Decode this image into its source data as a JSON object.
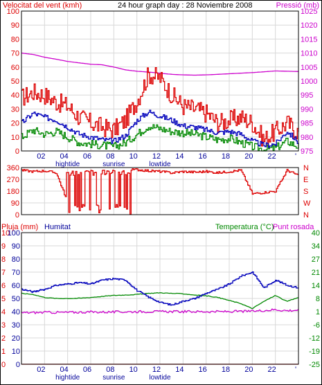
{
  "header": {
    "left_label": "Velocitat del vent (kmh)",
    "title": "24 hour graph day : 28 Noviembre 2008",
    "right_label": "Pressió (mb)"
  },
  "colors": {
    "frame": "#000000",
    "grid": "#d8d8d8",
    "red": "#dd0000",
    "green": "#008800",
    "blue": "#0000bb",
    "magenta": "#cc00cc",
    "label_blue": "#000099"
  },
  "chart_data": [
    {
      "id": "wind",
      "type": "line",
      "title": "24 hour graph day : 28 Noviembre 2008",
      "y_left": {
        "label": "Velocitat del vent (kmh)",
        "ticks": [
          0,
          10,
          20,
          30,
          40,
          50,
          60,
          70,
          80,
          90,
          100
        ],
        "range": [
          0,
          100
        ]
      },
      "y_right": {
        "label": "Pressió (mb)",
        "ticks": [
          975,
          980,
          985,
          990,
          995,
          1000,
          1005,
          1010,
          1015,
          1020,
          1025
        ],
        "range": [
          975,
          1025
        ]
      },
      "x_ticks": [
        "02",
        "04",
        "06",
        "08",
        "10",
        "12",
        "14",
        "16",
        "18",
        "20",
        "22"
      ],
      "x_annotations": [
        {
          "label": "hightide",
          "at": "04"
        },
        {
          "label": "sunrise",
          "at": "08"
        },
        {
          "label": "lowtide",
          "at": "12"
        }
      ],
      "x_hours": [
        0,
        1,
        2,
        3,
        4,
        5,
        6,
        7,
        8,
        9,
        10,
        11,
        12,
        13,
        14,
        15,
        16,
        17,
        18,
        19,
        20,
        21,
        22,
        23,
        24
      ],
      "series": [
        {
          "name": "gust",
          "axis": "left",
          "color": "#dd0000",
          "values": [
            38,
            42,
            40,
            35,
            32,
            24,
            20,
            17,
            15,
            22,
            36,
            55,
            52,
            40,
            32,
            30,
            27,
            20,
            22,
            24,
            20,
            8,
            14,
            20,
            13
          ]
        },
        {
          "name": "average",
          "axis": "left",
          "color": "#0000bb",
          "values": [
            20,
            27,
            24,
            22,
            17,
            12,
            10,
            8,
            7,
            11,
            22,
            28,
            25,
            22,
            18,
            17,
            15,
            13,
            14,
            12,
            7,
            4,
            5,
            14,
            6
          ]
        },
        {
          "name": "minimum",
          "axis": "left",
          "color": "#008800",
          "values": [
            10,
            15,
            12,
            14,
            10,
            6,
            5,
            4,
            3,
            6,
            12,
            18,
            16,
            14,
            13,
            12,
            10,
            8,
            9,
            6,
            3,
            1,
            2,
            7,
            3
          ]
        },
        {
          "name": "pressure",
          "axis": "right",
          "color": "#cc00cc",
          "values": [
            1010,
            1009.5,
            1008.5,
            1007.8,
            1007,
            1006.5,
            1006,
            1005.8,
            1005,
            1004,
            1003.5,
            1003.2,
            1002.8,
            1002.4,
            1002.2,
            1002.1,
            1002.2,
            1002.4,
            1002.6,
            1002.8,
            1003.0,
            1003.3,
            1003.6,
            1003.5,
            1003.4
          ]
        }
      ]
    },
    {
      "id": "direction",
      "type": "line",
      "y_left": {
        "ticks": [
          0,
          90,
          180,
          270,
          360
        ],
        "range": [
          0,
          360
        ]
      },
      "y_right": {
        "ticks": [
          "N",
          "W",
          "S",
          "E",
          "N"
        ]
      },
      "x_hours": [
        0,
        1,
        2,
        3,
        4,
        5,
        6,
        7,
        8,
        9,
        10,
        11,
        12,
        13,
        14,
        15,
        16,
        17,
        18,
        19,
        20,
        21,
        22,
        23,
        24
      ],
      "series": [
        {
          "name": "direction",
          "color": "#dd0000",
          "values": [
            340,
            330,
            335,
            320,
            90,
            40,
            280,
            300,
            330,
            340,
            345,
            335,
            330,
            320,
            330,
            325,
            330,
            320,
            330,
            340,
            160,
            170,
            180,
            340,
            300
          ]
        }
      ]
    },
    {
      "id": "climate",
      "type": "line",
      "y_left": {
        "label": "Pluja (mm)",
        "ticks": [
          0,
          1,
          2,
          3,
          4,
          5,
          6,
          7,
          8,
          9,
          10
        ],
        "range": [
          0,
          10
        ]
      },
      "y_left2": {
        "label": "Humitat",
        "ticks": [
          0,
          10,
          20,
          30,
          40,
          50,
          60,
          70,
          80,
          90,
          100
        ],
        "range": [
          0,
          100
        ]
      },
      "y_right": {
        "label": "Temperatura (°C)",
        "label2": "Punt rosada",
        "ticks": [
          -25,
          -19,
          -12,
          -6,
          1,
          8,
          14,
          21,
          27,
          34,
          40
        ],
        "range": [
          -25,
          40
        ]
      },
      "x_ticks": [
        "02",
        "04",
        "06",
        "08",
        "10",
        "12",
        "14",
        "16",
        "18",
        "20",
        "22"
      ],
      "x_annotations": [
        {
          "label": "hightide",
          "at": "04"
        },
        {
          "label": "sunrise",
          "at": "08"
        },
        {
          "label": "lowtide",
          "at": "12"
        }
      ],
      "x_hours": [
        0,
        1,
        2,
        3,
        4,
        5,
        6,
        7,
        8,
        9,
        10,
        11,
        12,
        13,
        14,
        15,
        16,
        17,
        18,
        19,
        20,
        21,
        22,
        23,
        24
      ],
      "series": [
        {
          "name": "Humitat",
          "axis": "left2",
          "color": "#0000bb",
          "values": [
            57,
            55,
            57,
            60,
            61,
            62,
            61,
            64,
            65,
            64,
            56,
            51,
            47,
            45,
            48,
            50,
            54,
            57,
            61,
            67,
            70,
            58,
            64,
            60,
            58
          ]
        },
        {
          "name": "Temperatura (°C)",
          "axis": "right",
          "color": "#008800",
          "values": [
            10,
            9.5,
            8,
            7.5,
            7.5,
            7.6,
            8,
            8.5,
            9,
            9.2,
            9.5,
            10,
            10.3,
            10,
            9.8,
            9.2,
            8.8,
            8,
            6.5,
            5,
            2.5,
            6,
            9,
            6,
            8
          ]
        },
        {
          "name": "Punt rosada",
          "axis": "right",
          "color": "#cc00cc",
          "values": [
            0.5,
            0.5,
            0.6,
            0.6,
            0.6,
            0.7,
            0.8,
            0.8,
            0.8,
            0.9,
            1.0,
            1.0,
            1.0,
            1.0,
            1.0,
            1.0,
            1.0,
            1.0,
            1.0,
            1.1,
            1.2,
            1.6,
            2.0,
            1.5,
            1.8
          ]
        },
        {
          "name": "Pluja (mm)",
          "axis": "left",
          "color": "#dd0000",
          "values": [
            0,
            0,
            0,
            0,
            0,
            0,
            0,
            0,
            0,
            0,
            0,
            0,
            0,
            0,
            0,
            0,
            0,
            0,
            0,
            0,
            0,
            0,
            0,
            0,
            0
          ]
        }
      ]
    }
  ]
}
